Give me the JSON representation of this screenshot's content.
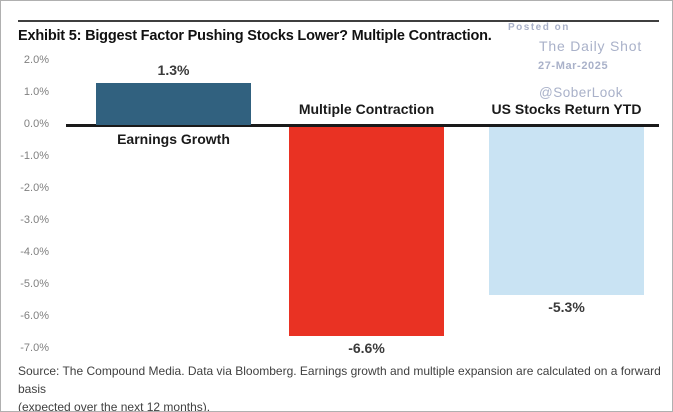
{
  "header": {
    "title": "Exhibit 5: Biggest Factor Pushing Stocks Lower? Multiple Contraction."
  },
  "watermark": {
    "posted_on": "Posted on",
    "site": "The Daily Shot",
    "date": "27-Mar-2025",
    "handle": "@SoberLook",
    "color": "#a9b1c9"
  },
  "chart_data": {
    "type": "bar",
    "title": "Exhibit 5: Biggest Factor Pushing Stocks Lower? Multiple Contraction.",
    "categories": [
      "Earnings Growth",
      "Multiple Contraction",
      "US Stocks Return YTD"
    ],
    "values": [
      1.3,
      -6.6,
      -5.3
    ],
    "value_labels": [
      "1.3%",
      "-6.6%",
      "-5.3%"
    ],
    "bar_colors": [
      "#31617f",
      "#e93223",
      "#c9e3f3"
    ],
    "xlabel": "",
    "ylabel": "",
    "ylim": [
      -7.0,
      2.0
    ],
    "ytick_values": [
      2.0,
      1.0,
      0.0,
      -1.0,
      -2.0,
      -3.0,
      -4.0,
      -5.0,
      -6.0,
      -7.0
    ],
    "ytick_labels": [
      "2.0%",
      "1.0%",
      "0.0%",
      "-1.0%",
      "-2.0%",
      "-3.0%",
      "-4.0%",
      "-5.0%",
      "-6.0%",
      "-7.0%"
    ],
    "grid": false,
    "legend": false,
    "baseline_color": "#1a1a1a",
    "tick_color": "#808080"
  },
  "source": {
    "text": "Source: The Compound Media. Data via Bloomberg. Earnings growth and multiple expansion are calculated on a forward basis\n(expected over the next 12 months)."
  }
}
